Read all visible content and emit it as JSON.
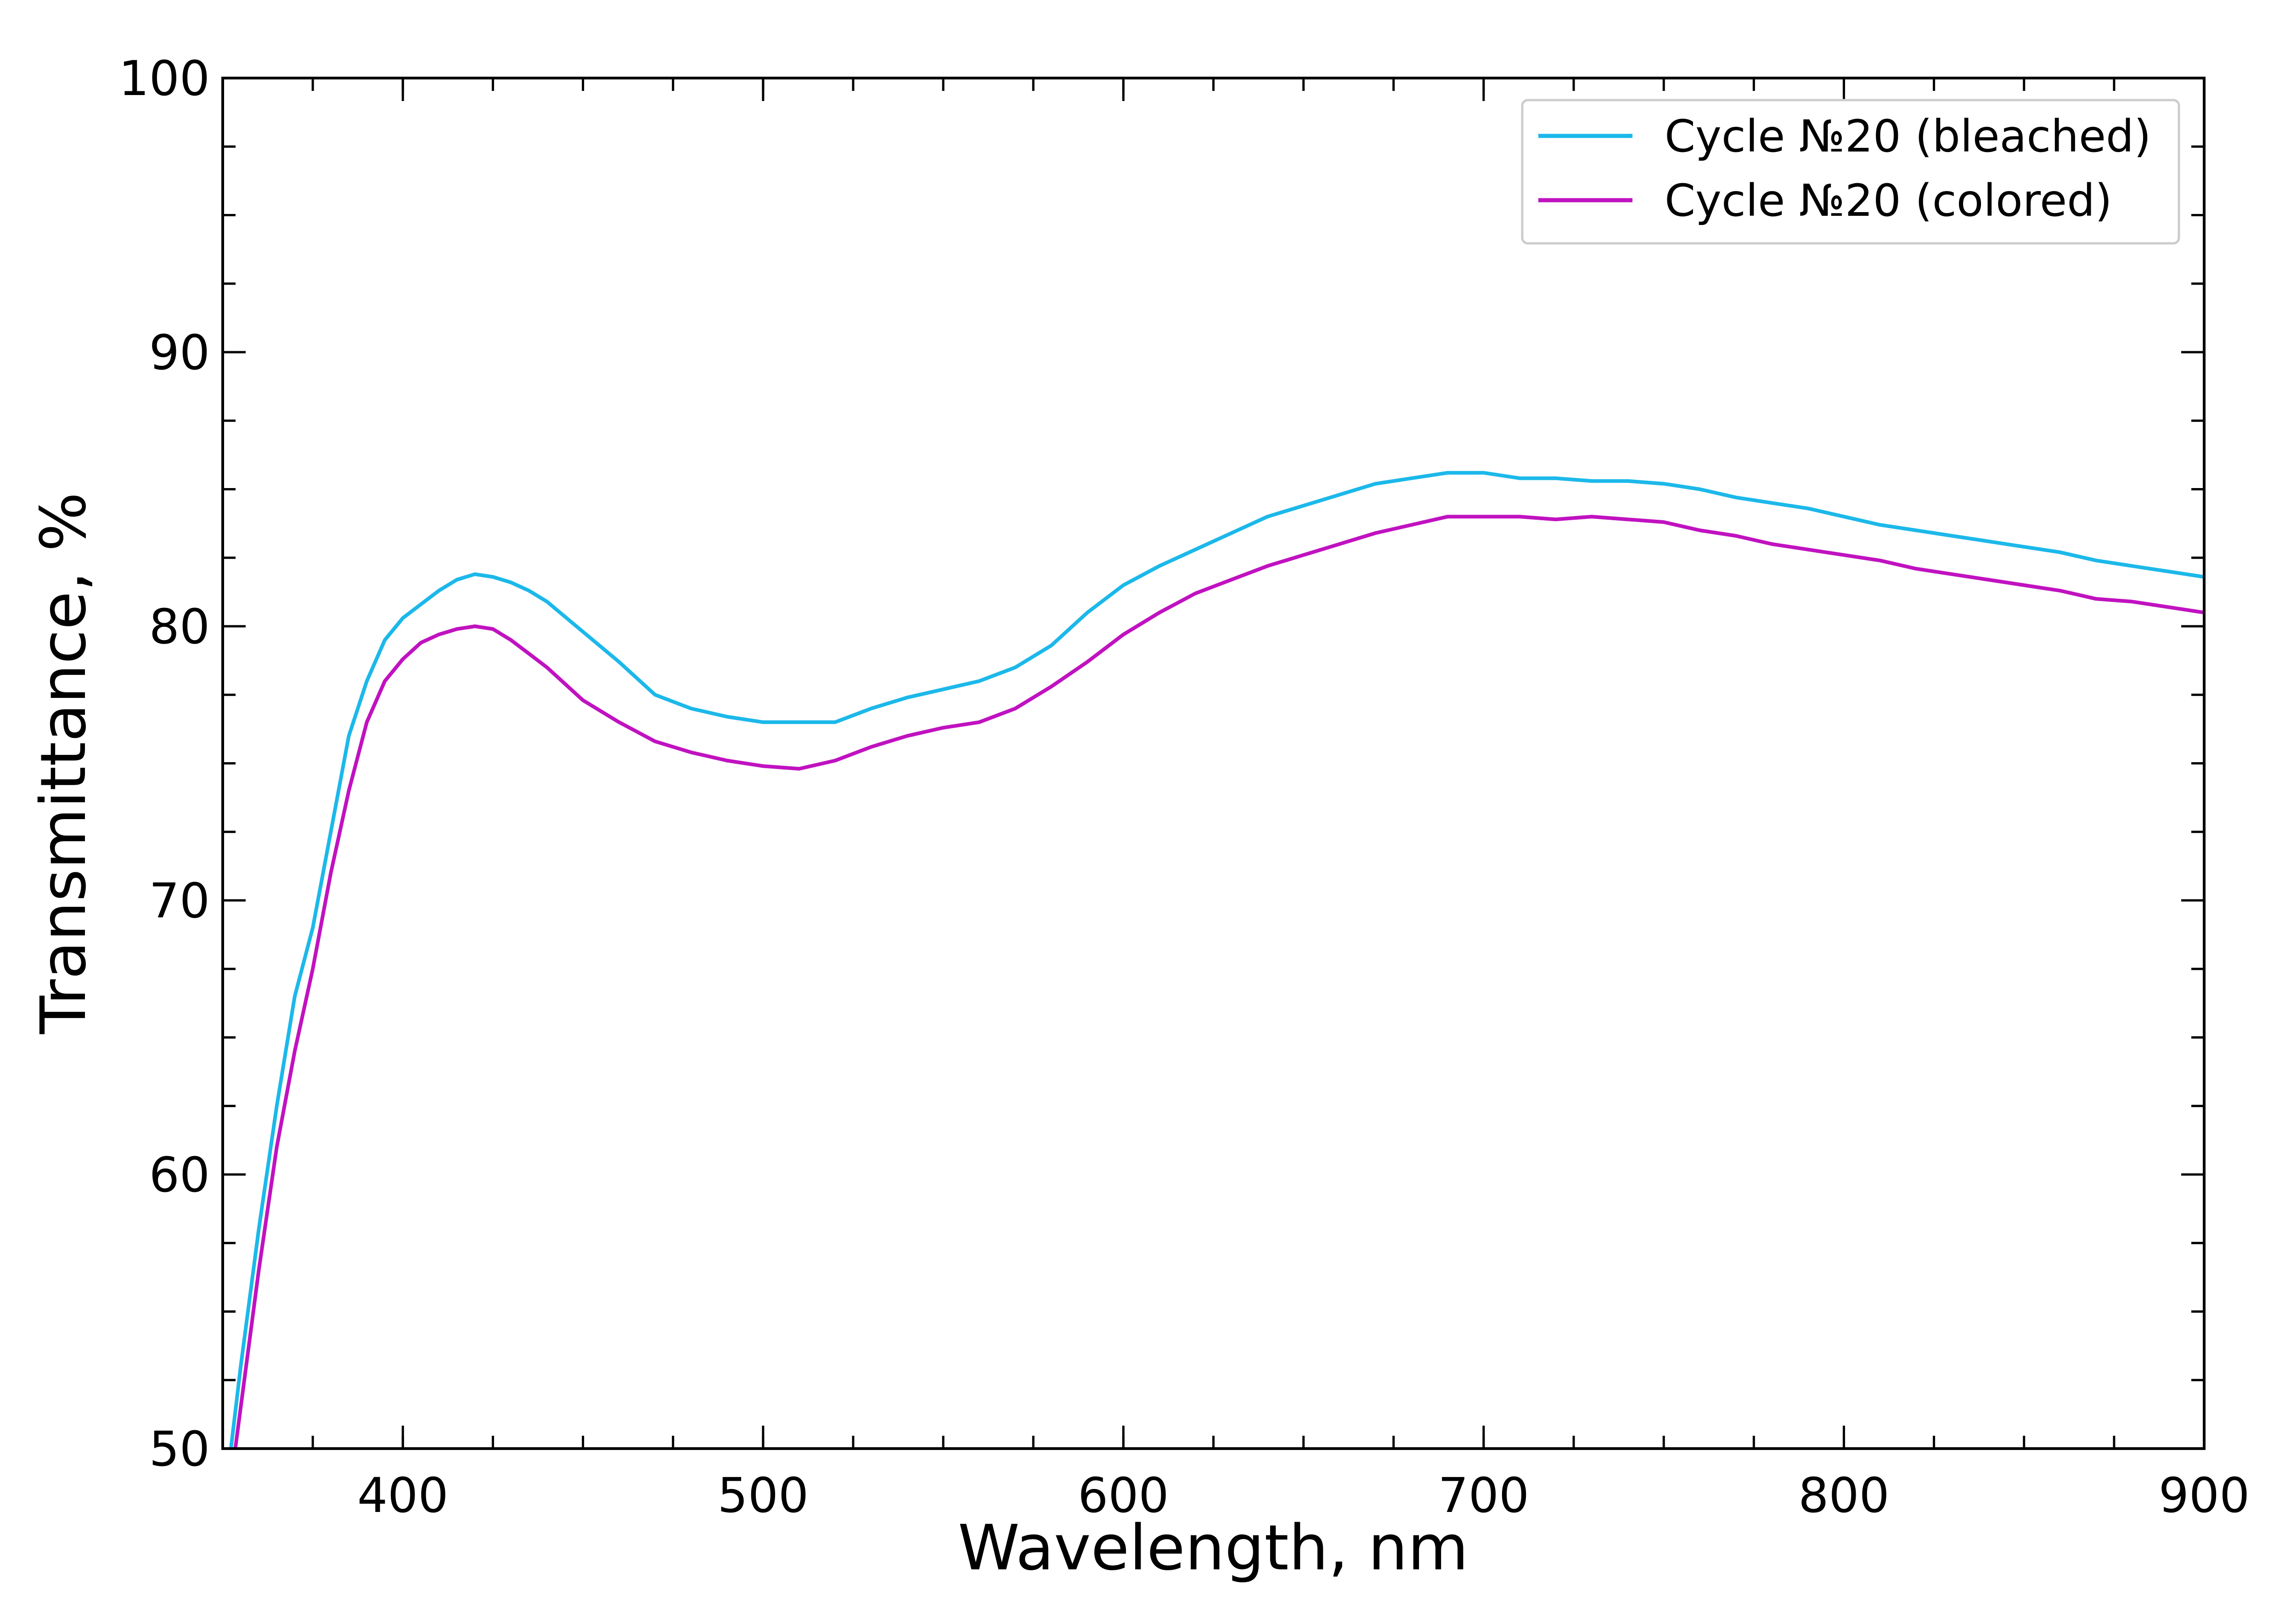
{
  "chart_data": {
    "type": "line",
    "xlabel": "Wavelength, nm",
    "ylabel": "Transmittance, %",
    "xlim": [
      350,
      900
    ],
    "ylim": [
      50,
      100
    ],
    "x_ticks": [
      400,
      500,
      600,
      700,
      800,
      900
    ],
    "y_ticks": [
      50,
      60,
      70,
      80,
      90,
      100
    ],
    "x_minor_step": 25,
    "y_minor_step": 2.5,
    "grid": false,
    "legend_position": "top-right",
    "series": [
      {
        "name": "Cycle №20 (bleached)",
        "color": "#1cb8ea",
        "x": [
          350,
          355,
          360,
          365,
          370,
          375,
          380,
          385,
          390,
          395,
          400,
          405,
          410,
          415,
          420,
          425,
          430,
          435,
          440,
          450,
          460,
          470,
          480,
          490,
          500,
          510,
          520,
          530,
          540,
          550,
          560,
          570,
          580,
          590,
          600,
          610,
          620,
          630,
          640,
          650,
          660,
          670,
          680,
          690,
          700,
          710,
          720,
          730,
          740,
          750,
          760,
          770,
          780,
          790,
          800,
          810,
          820,
          830,
          840,
          850,
          860,
          870,
          880,
          890,
          900
        ],
        "y": [
          47.5,
          53.0,
          58.0,
          62.5,
          66.5,
          69.0,
          72.5,
          76.0,
          78.0,
          79.5,
          80.3,
          80.8,
          81.3,
          81.7,
          81.9,
          81.8,
          81.6,
          81.3,
          80.9,
          79.8,
          78.7,
          77.5,
          77.0,
          76.7,
          76.5,
          76.5,
          76.5,
          77.0,
          77.4,
          77.7,
          78.0,
          78.5,
          79.3,
          80.5,
          81.5,
          82.2,
          82.8,
          83.4,
          84.0,
          84.4,
          84.8,
          85.2,
          85.4,
          85.6,
          85.6,
          85.4,
          85.4,
          85.3,
          85.3,
          85.2,
          85.0,
          84.7,
          84.5,
          84.3,
          84.0,
          83.7,
          83.5,
          83.3,
          83.1,
          82.9,
          82.7,
          82.4,
          82.2,
          82.0,
          81.8
        ]
      },
      {
        "name": "Cycle №20 (colored)",
        "color": "#c012c0",
        "x": [
          350,
          355,
          360,
          365,
          370,
          375,
          380,
          385,
          390,
          395,
          400,
          405,
          410,
          415,
          420,
          425,
          430,
          435,
          440,
          450,
          460,
          470,
          480,
          490,
          500,
          510,
          520,
          530,
          540,
          550,
          560,
          570,
          580,
          590,
          600,
          610,
          620,
          630,
          640,
          650,
          660,
          670,
          680,
          690,
          700,
          710,
          720,
          730,
          740,
          750,
          760,
          770,
          780,
          790,
          800,
          810,
          820,
          830,
          840,
          850,
          860,
          870,
          880,
          890,
          900
        ],
        "y": [
          46.5,
          51.5,
          56.5,
          61.0,
          64.5,
          67.5,
          71.0,
          74.0,
          76.5,
          78.0,
          78.8,
          79.4,
          79.7,
          79.9,
          80.0,
          79.9,
          79.5,
          79.0,
          78.5,
          77.3,
          76.5,
          75.8,
          75.4,
          75.1,
          74.9,
          74.8,
          75.1,
          75.6,
          76.0,
          76.3,
          76.5,
          77.0,
          77.8,
          78.7,
          79.7,
          80.5,
          81.2,
          81.7,
          82.2,
          82.6,
          83.0,
          83.4,
          83.7,
          84.0,
          84.0,
          84.0,
          83.9,
          84.0,
          83.9,
          83.8,
          83.5,
          83.3,
          83.0,
          82.8,
          82.6,
          82.4,
          82.1,
          81.9,
          81.7,
          81.5,
          81.3,
          81.0,
          80.9,
          80.7,
          80.5
        ]
      }
    ]
  }
}
